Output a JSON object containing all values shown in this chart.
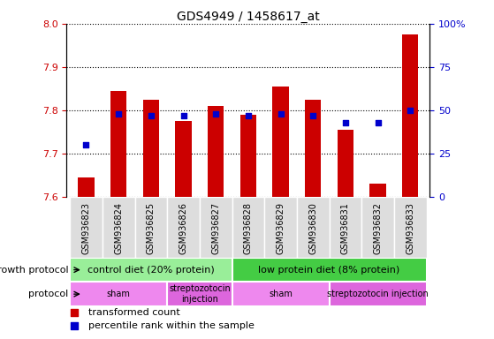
{
  "title": "GDS4949 / 1458617_at",
  "samples": [
    "GSM936823",
    "GSM936824",
    "GSM936825",
    "GSM936826",
    "GSM936827",
    "GSM936828",
    "GSM936829",
    "GSM936830",
    "GSM936831",
    "GSM936832",
    "GSM936833"
  ],
  "transformed_count": [
    7.645,
    7.845,
    7.825,
    7.775,
    7.81,
    7.79,
    7.855,
    7.825,
    7.755,
    7.63,
    7.975
  ],
  "percentile_rank": [
    30,
    48,
    47,
    47,
    48,
    47,
    48,
    47,
    43,
    43,
    50
  ],
  "ylim_left": [
    7.6,
    8.0
  ],
  "ylim_right": [
    0,
    100
  ],
  "yticks_left": [
    7.6,
    7.7,
    7.8,
    7.9,
    8.0
  ],
  "yticks_right": [
    0,
    25,
    50,
    75,
    100
  ],
  "ytick_labels_right": [
    "0",
    "25",
    "50",
    "75",
    "100%"
  ],
  "bar_color": "#cc0000",
  "dot_color": "#0000cc",
  "bar_bottom": 7.6,
  "growth_protocol_groups": [
    {
      "label": "control diet (20% protein)",
      "start": 0,
      "end": 5,
      "color": "#99ee99"
    },
    {
      "label": "low protein diet (8% protein)",
      "start": 5,
      "end": 11,
      "color": "#44cc44"
    }
  ],
  "protocol_groups": [
    {
      "label": "sham",
      "start": 0,
      "end": 3,
      "color": "#ee88ee"
    },
    {
      "label": "streptozotocin\ninjection",
      "start": 3,
      "end": 5,
      "color": "#dd66dd"
    },
    {
      "label": "sham",
      "start": 5,
      "end": 8,
      "color": "#ee88ee"
    },
    {
      "label": "streptozotocin injection",
      "start": 8,
      "end": 11,
      "color": "#dd66dd"
    }
  ],
  "tick_label_color_left": "#cc0000",
  "tick_label_color_right": "#0000cc",
  "xtick_bg_color": "#dddddd",
  "legend_bar_label": "transformed count",
  "legend_dot_label": "percentile rank within the sample"
}
